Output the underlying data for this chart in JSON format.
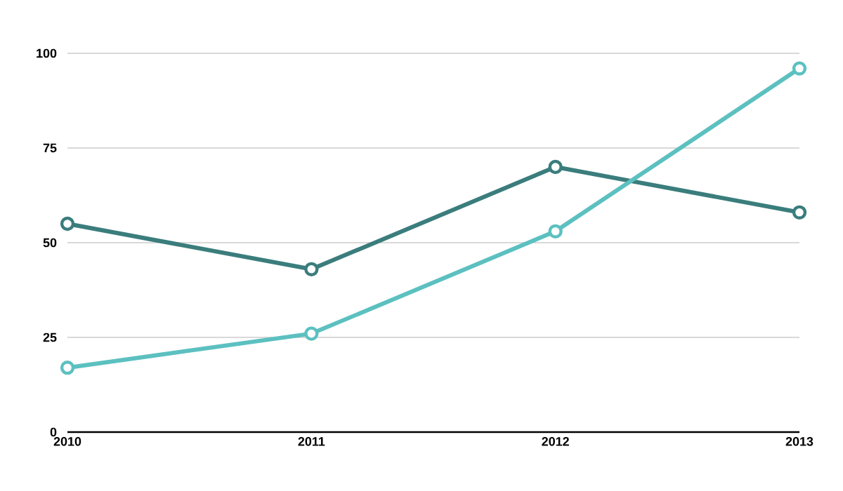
{
  "chart_data": {
    "type": "line",
    "categories": [
      "2010",
      "2011",
      "2012",
      "2013"
    ],
    "series": [
      {
        "color": "#3a7d7c",
        "values": [
          55,
          43,
          70,
          58
        ]
      },
      {
        "color": "#5cc0c0",
        "values": [
          17,
          26,
          53,
          96
        ]
      }
    ],
    "ylim": [
      0,
      100
    ],
    "yticks": [
      0,
      25,
      50,
      75,
      100
    ],
    "grid": "y",
    "marker": "circle"
  }
}
